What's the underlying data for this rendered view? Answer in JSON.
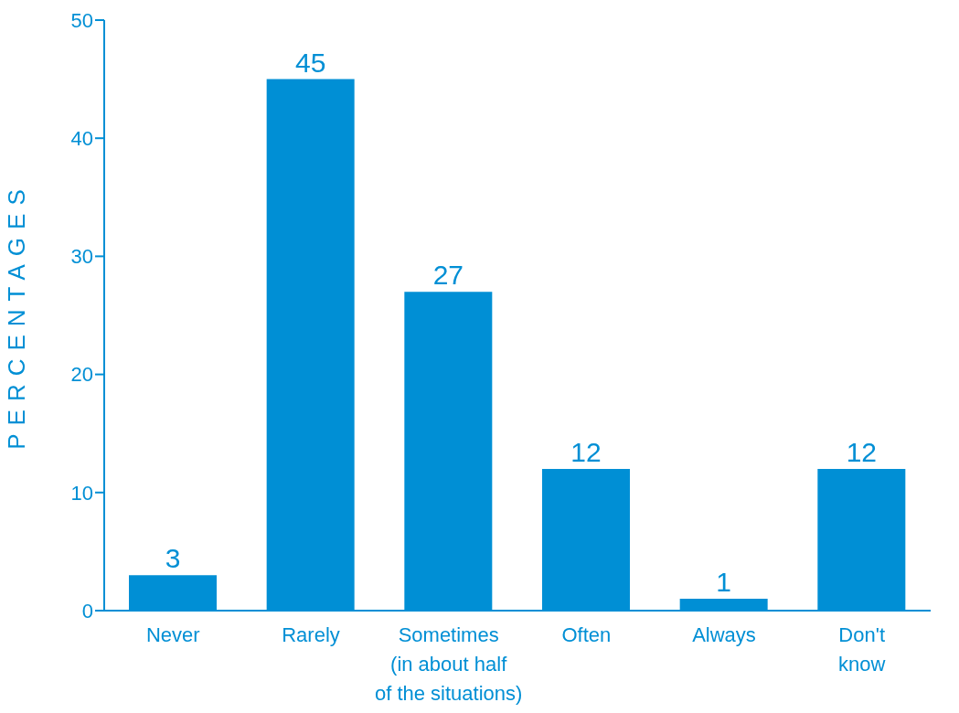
{
  "chart_data": {
    "type": "bar",
    "ylabel": "PERCENTAGES",
    "categories": [
      "Never",
      "Rarely",
      "Sometimes\n(in about half\nof the situations)",
      "Often",
      "Always",
      "Don't\nknow"
    ],
    "values": [
      3,
      45,
      27,
      12,
      1,
      12
    ],
    "color": "#008fd5",
    "ylim": [
      0,
      50
    ],
    "yticks": [
      0,
      10,
      20,
      30,
      40,
      50
    ],
    "grid": false,
    "legend": false,
    "data_labels": true
  }
}
